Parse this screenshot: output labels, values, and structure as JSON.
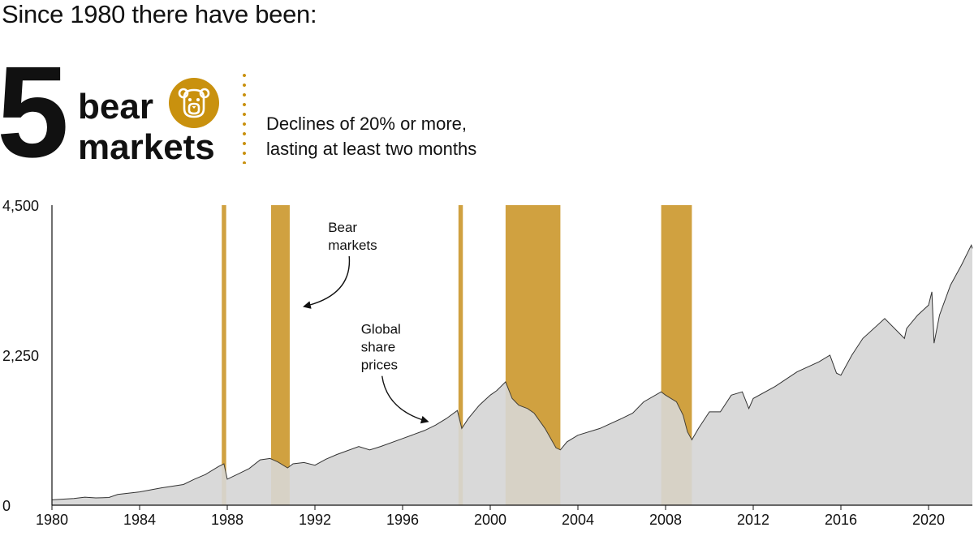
{
  "header": {
    "intro": "Since 1980 there have been:",
    "count": "5",
    "word1": "bear",
    "word2": "markets",
    "badge_icon": "bear-face-icon",
    "definition_line1": "Declines of 20% or more,",
    "definition_line2": "lasting at least two months"
  },
  "colors": {
    "bear_band": "#d1a140",
    "area_fill": "#d9d9d9",
    "line": "#333333",
    "badge": "#c9910e"
  },
  "chart_data": {
    "type": "area",
    "title": "",
    "xlabel": "",
    "ylabel": "",
    "xlim": [
      1980,
      2022
    ],
    "ylim": [
      0,
      4500
    ],
    "yticks": [
      0,
      2250,
      4500
    ],
    "ytick_labels": [
      "0",
      "2,250",
      "4,500"
    ],
    "xticks": [
      1980,
      1984,
      1988,
      1992,
      1996,
      2000,
      2004,
      2008,
      2012,
      2016,
      2020
    ],
    "xtick_labels": [
      "1980",
      "1984",
      "1988",
      "1992",
      "1996",
      "2000",
      "2004",
      "2008",
      "2012",
      "2016",
      "2020"
    ],
    "grid": false,
    "series": [
      {
        "name": "Global share prices",
        "x": [
          1980.0,
          1981.0,
          1981.5,
          1982.0,
          1982.6,
          1983.0,
          1984.0,
          1985.0,
          1986.0,
          1986.5,
          1987.0,
          1987.6,
          1987.85,
          1988.0,
          1988.5,
          1989.0,
          1989.5,
          1989.95,
          1990.3,
          1990.75,
          1991.0,
          1991.5,
          1992.0,
          1992.5,
          1993.0,
          1994.0,
          1994.5,
          1995.0,
          1996.0,
          1997.0,
          1997.5,
          1998.0,
          1998.5,
          1998.7,
          1999.0,
          1999.5,
          2000.0,
          2000.3,
          2000.7,
          2001.0,
          2001.3,
          2001.7,
          2002.0,
          2002.5,
          2003.0,
          2003.2,
          2003.5,
          2004.0,
          2005.0,
          2006.0,
          2006.5,
          2007.0,
          2007.8,
          2008.0,
          2008.5,
          2008.8,
          2009.0,
          2009.2,
          2009.5,
          2010.0,
          2010.5,
          2011.0,
          2011.5,
          2011.8,
          2012.0,
          2013.0,
          2014.0,
          2015.0,
          2015.5,
          2015.8,
          2016.0,
          2016.5,
          2017.0,
          2018.0,
          2018.9,
          2019.0,
          2019.5,
          2020.0,
          2020.15,
          2020.25,
          2020.5,
          2021.0,
          2021.5,
          2021.95,
          2022.0
        ],
        "values": [
          80,
          100,
          120,
          110,
          115,
          160,
          200,
          260,
          310,
          390,
          460,
          580,
          620,
          390,
          470,
          550,
          680,
          700,
          650,
          560,
          620,
          640,
          600,
          690,
          760,
          880,
          830,
          880,
          1000,
          1120,
          1200,
          1300,
          1420,
          1150,
          1300,
          1500,
          1650,
          1720,
          1850,
          1600,
          1500,
          1450,
          1380,
          1150,
          860,
          830,
          950,
          1050,
          1150,
          1300,
          1380,
          1550,
          1700,
          1650,
          1550,
          1350,
          1100,
          980,
          1150,
          1400,
          1400,
          1650,
          1700,
          1450,
          1600,
          1780,
          2000,
          2150,
          2250,
          1980,
          1950,
          2250,
          2500,
          2800,
          2500,
          2650,
          2850,
          3000,
          3200,
          2430,
          2850,
          3300,
          3600,
          3900,
          3850
        ]
      }
    ],
    "bear_markets": [
      {
        "start": 1987.75,
        "end": 1987.95
      },
      {
        "start": 1990.0,
        "end": 1990.85
      },
      {
        "start": 1998.55,
        "end": 1998.75
      },
      {
        "start": 2000.7,
        "end": 2003.2
      },
      {
        "start": 2007.8,
        "end": 2009.2
      }
    ],
    "annotations": [
      {
        "lines": [
          "Bear",
          "markets"
        ],
        "x": 1992.6,
        "y": 4100
      },
      {
        "lines": [
          "Global",
          "share",
          "prices"
        ],
        "x": 1994.1,
        "y": 2570
      }
    ]
  }
}
